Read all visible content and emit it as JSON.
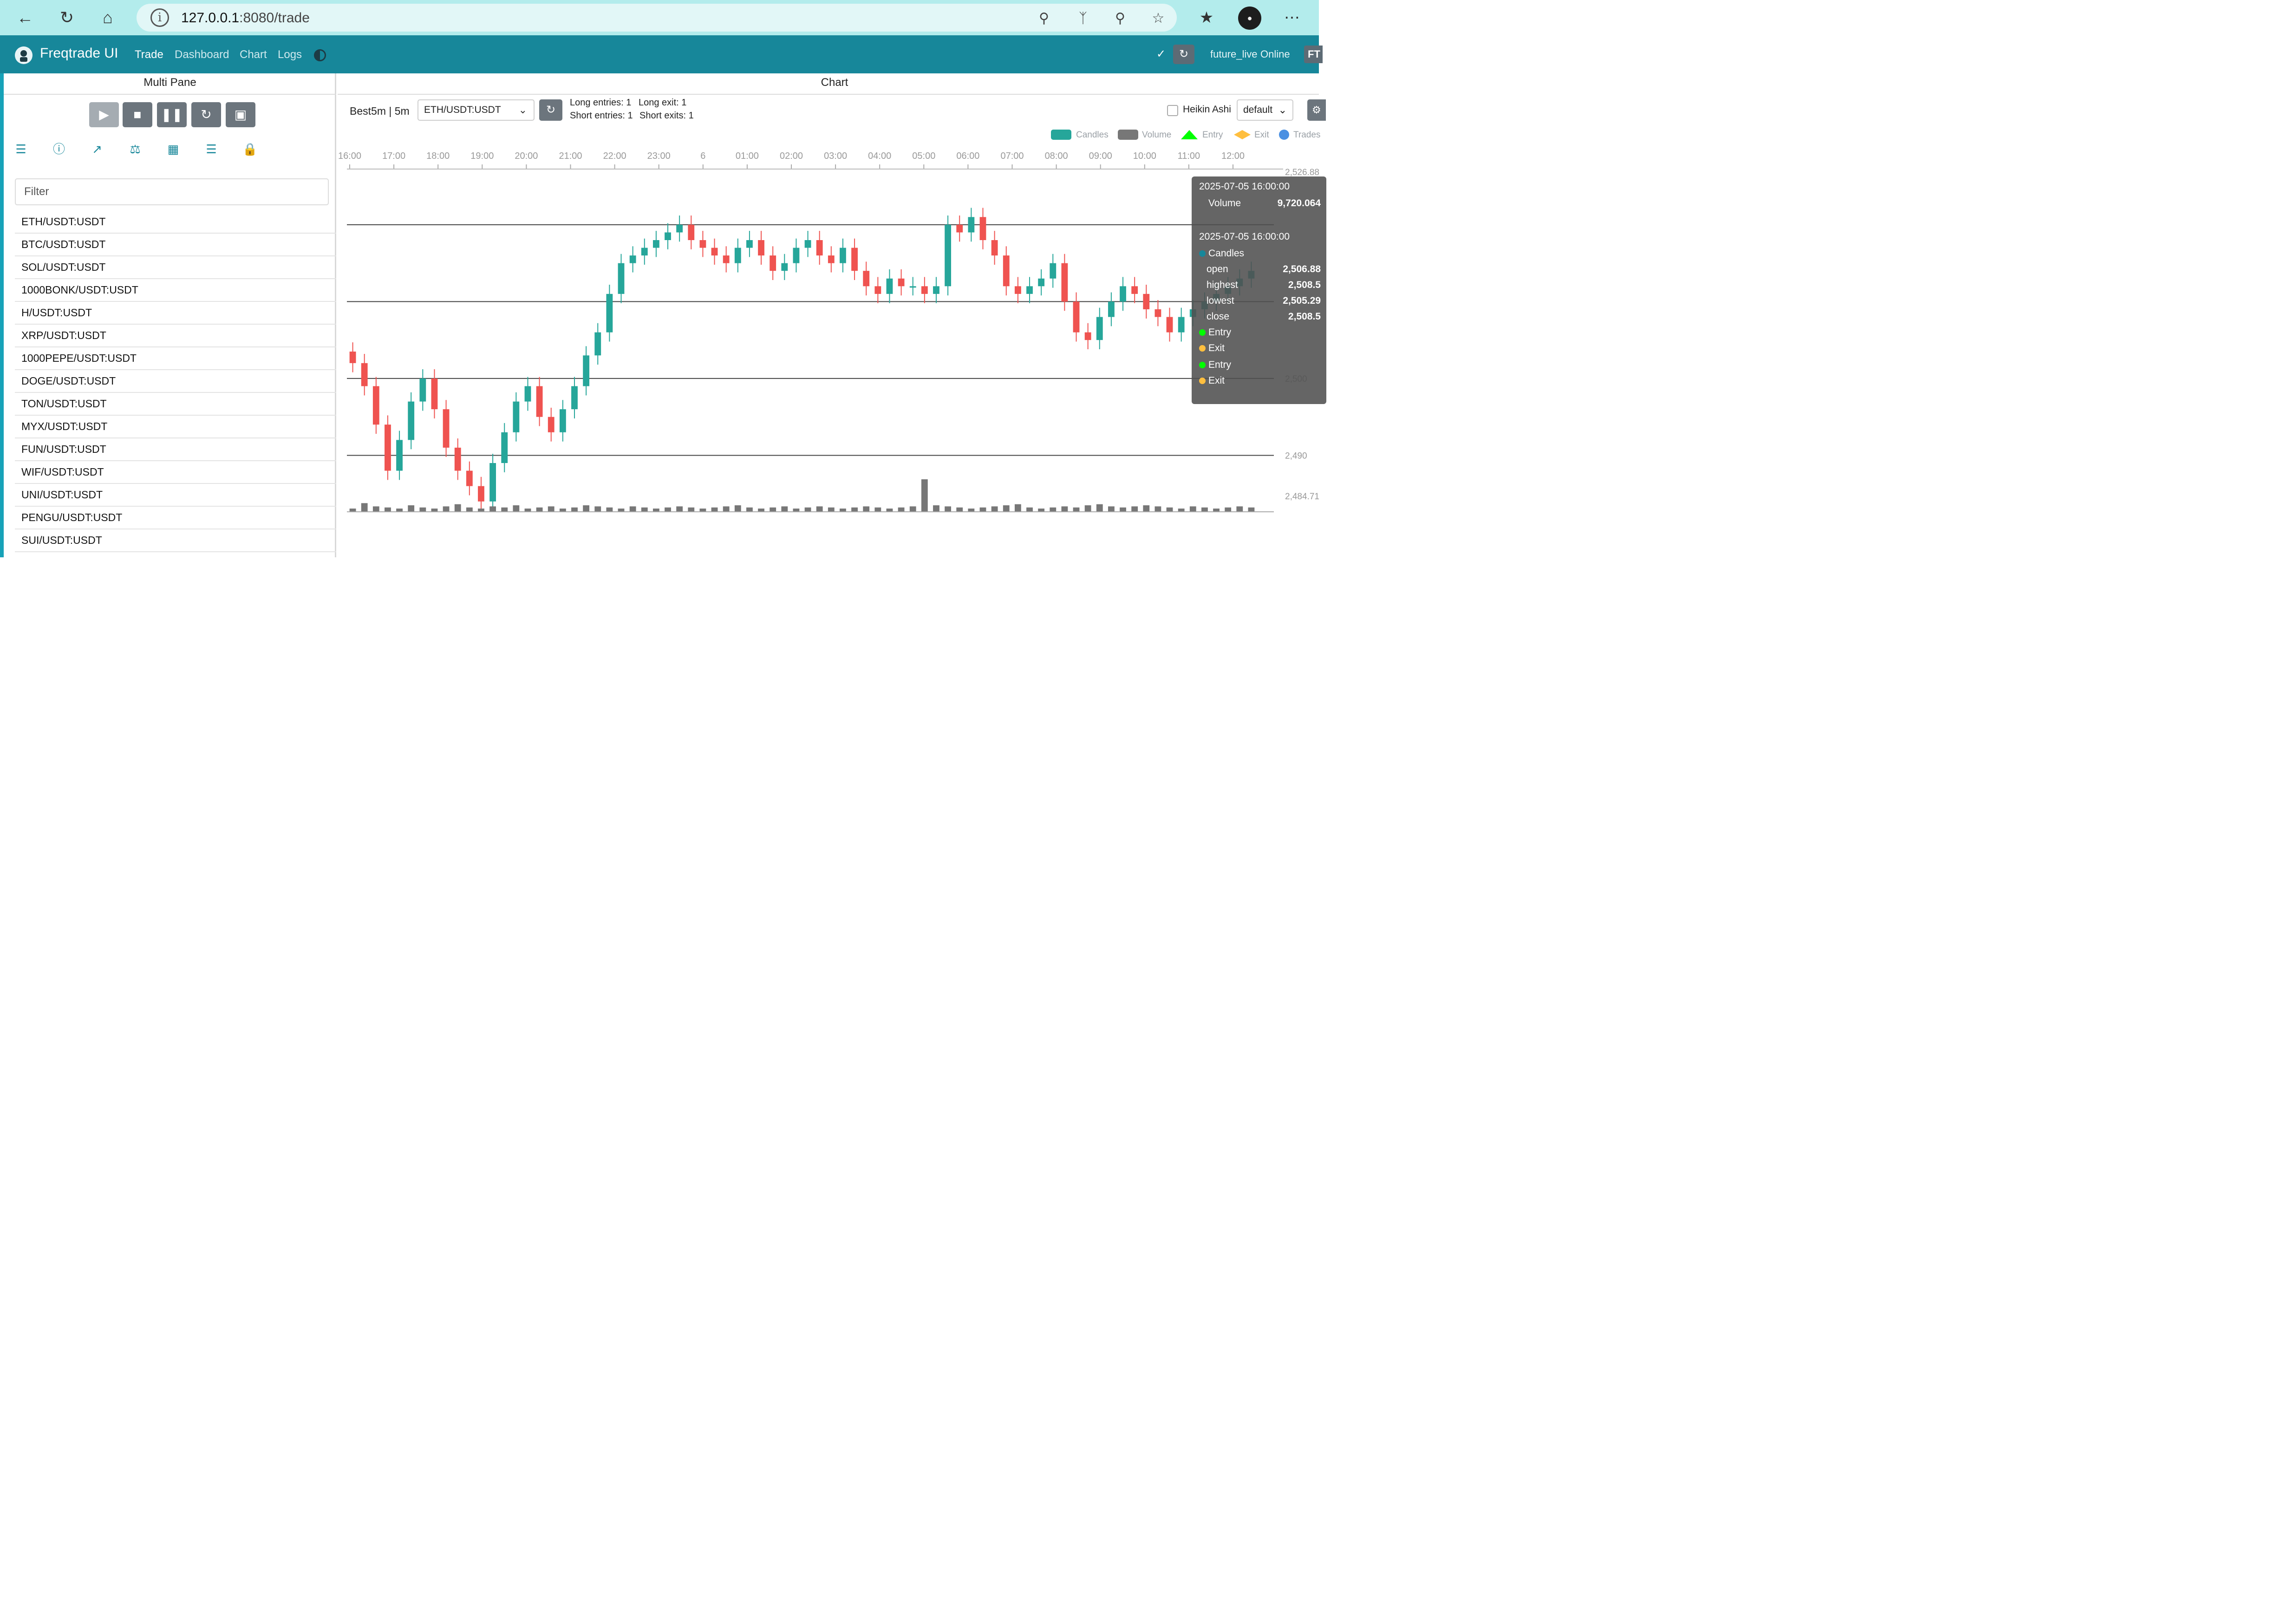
{
  "browser": {
    "url_host": "127.0.0.1",
    "url_rest": ":8080/trade",
    "icons": [
      "back-icon",
      "refresh-icon",
      "home-icon",
      "info-icon",
      "key-icon",
      "translate-icon",
      "zoom-icon",
      "star-icon",
      "favorites-icon",
      "profile-avatar",
      "more-icon"
    ]
  },
  "app": {
    "title": "Freqtrade UI",
    "nav": [
      "Trade",
      "Dashboard",
      "Chart",
      "Logs"
    ],
    "bot_name": "future_live",
    "status": "Online",
    "badge": "FT",
    "accent_color": "#17879a"
  },
  "left_pane": {
    "title": "Multi Pane",
    "filter_placeholder": "Filter",
    "pairs": [
      "ETH/USDT:USDT",
      "BTC/USDT:USDT",
      "SOL/USDT:USDT",
      "1000BONK/USDT:USDT",
      "H/USDT:USDT",
      "XRP/USDT:USDT",
      "1000PEPE/USDT:USDT",
      "DOGE/USDT:USDT",
      "TON/USDT:USDT",
      "MYX/USDT:USDT",
      "FUN/USDT:USDT",
      "WIF/USDT:USDT",
      "UNI/USDT:USDT",
      "PENGU/USDT:USDT",
      "SUI/USDT:USDT"
    ]
  },
  "chart_pane": {
    "title": "Chart",
    "strategy_label": "Best5m | 5m",
    "pair_selected": "ETH/USDT:USDT",
    "long_entries": "Long entries: 1",
    "long_exit": "Long exit: 1",
    "short_entries": "Short entries: 1",
    "short_exits": "Short exits: 1",
    "heikin_label": "Heikin Ashi",
    "plot_config": "default",
    "legend": [
      "Candles",
      "Volume",
      "Entry",
      "Exit",
      "Trades"
    ],
    "x_ticks": [
      "16:00",
      "17:00",
      "18:00",
      "19:00",
      "20:00",
      "21:00",
      "22:00",
      "23:00",
      "6",
      "01:00",
      "02:00",
      "03:00",
      "04:00",
      "05:00",
      "06:00",
      "07:00",
      "08:00",
      "09:00",
      "10:00",
      "11:00",
      "12:00"
    ],
    "y_ticks": [
      "2,526.88",
      "2,490",
      "2,484.71"
    ],
    "y_tick_partial": "2,500"
  },
  "tooltip": {
    "time1": "2025-07-05 16:00:00",
    "volume_label": "Volume",
    "volume_value": "9,720.064",
    "time2": "2025-07-05 16:00:00",
    "series": "Candles",
    "open_label": "open",
    "open_value": "2,506.88",
    "high_label": "highest",
    "high_value": "2,508.5",
    "low_label": "lowest",
    "low_value": "2,505.29",
    "close_label": "close",
    "close_value": "2,508.5",
    "entry1": "Entry",
    "exit1": "Exit",
    "entry2": "Entry",
    "exit2": "Exit"
  },
  "chart_data": {
    "type": "candlestick",
    "ylim": [
      2484.71,
      2526.88
    ],
    "up_color": "#26a69a",
    "down_color": "#ef5350",
    "closes": [
      2502,
      2499,
      2494,
      2488,
      2492,
      2497,
      2500,
      2496,
      2491,
      2488,
      2486,
      2484,
      2489,
      2493,
      2497,
      2499,
      2495,
      2493,
      2496,
      2499,
      2503,
      2506,
      2511,
      2515,
      2516,
      2517,
      2518,
      2519,
      2520,
      2518,
      2517,
      2516,
      2515,
      2517,
      2518,
      2516,
      2514,
      2515,
      2517,
      2518,
      2516,
      2515,
      2517,
      2514,
      2512,
      2511,
      2513,
      2512,
      2512,
      2511,
      2512,
      2520,
      2519,
      2521,
      2518,
      2516,
      2512,
      2511,
      2512,
      2513,
      2515,
      2510,
      2506,
      2505,
      2508,
      2510,
      2512,
      2511,
      2509,
      2508,
      2506,
      2508,
      2509,
      2510,
      2511,
      2512,
      2513,
      2514
    ],
    "volumes": [
      3,
      8,
      5,
      4,
      3,
      6,
      4,
      3,
      5,
      7,
      4,
      3,
      5,
      4,
      6,
      3,
      4,
      5,
      3,
      4,
      6,
      5,
      4,
      3,
      5,
      4,
      3,
      4,
      5,
      4,
      3,
      4,
      5,
      6,
      4,
      3,
      4,
      5,
      3,
      4,
      5,
      4,
      3,
      4,
      5,
      4,
      3,
      4,
      5,
      30,
      6,
      5,
      4,
      3,
      4,
      5,
      6,
      7,
      4,
      3,
      4,
      5,
      4,
      6,
      7,
      5,
      4,
      5,
      6,
      5,
      4,
      3,
      5,
      4,
      3,
      4,
      5,
      4
    ]
  }
}
